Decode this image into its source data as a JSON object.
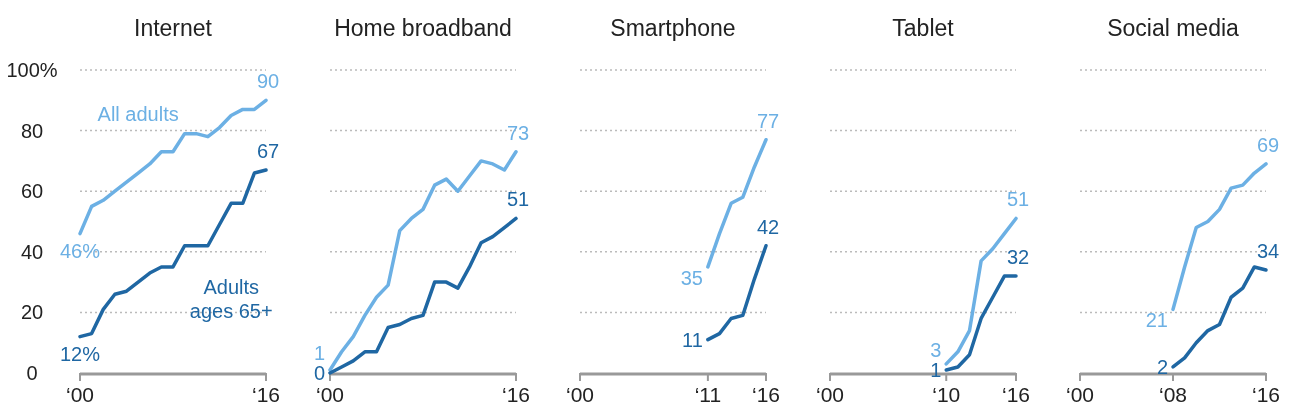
{
  "chart_data": [
    {
      "type": "line",
      "title": "Internet",
      "categories": [
        "‘00",
        null,
        null,
        null,
        null,
        null,
        null,
        null,
        null,
        null,
        null,
        null,
        null,
        null,
        null,
        null,
        "‘16"
      ],
      "ylim": [
        0,
        100
      ],
      "yticks": [
        0,
        20,
        40,
        60,
        80,
        {
          "value": 100,
          "label": "100%"
        }
      ],
      "grid": "y",
      "series": [
        {
          "name": "All adults",
          "color": "#6cb0e4",
          "values": [
            46,
            55,
            57,
            60,
            63,
            66,
            69,
            73,
            73,
            79,
            79,
            78,
            81,
            85,
            87,
            87,
            90
          ],
          "value_labels": [
            "46%",
            null,
            null,
            null,
            null,
            null,
            null,
            null,
            null,
            null,
            null,
            null,
            null,
            null,
            null,
            null,
            "90"
          ]
        },
        {
          "name": "Adults ages 65+",
          "color": "#1f67a3",
          "values": [
            12,
            13,
            21,
            26,
            27,
            30,
            33,
            35,
            35,
            42,
            42,
            42,
            49,
            56,
            56,
            66,
            67
          ],
          "value_labels": [
            "12%",
            null,
            null,
            null,
            null,
            null,
            null,
            null,
            null,
            null,
            null,
            null,
            null,
            null,
            null,
            null,
            "67"
          ]
        }
      ]
    },
    {
      "type": "line",
      "title": "Home broadband",
      "categories": [
        "‘00",
        null,
        null,
        null,
        null,
        null,
        null,
        null,
        null,
        null,
        null,
        null,
        null,
        null,
        null,
        null,
        "‘16"
      ],
      "ylim": [
        0,
        100
      ],
      "yticks": [
        0,
        20,
        40,
        60,
        80,
        100
      ],
      "grid": "y",
      "tick_labels": "x",
      "series": [
        {
          "color": "#6cb0e4",
          "values": [
            1,
            7,
            12,
            19,
            25,
            29,
            47,
            51,
            54,
            62,
            64,
            60,
            65,
            70,
            69,
            67,
            73
          ],
          "value_labels": [
            "1",
            null,
            null,
            null,
            null,
            null,
            null,
            null,
            null,
            null,
            null,
            null,
            null,
            null,
            null,
            null,
            "73"
          ]
        },
        {
          "color": "#1f67a3",
          "values": [
            0,
            2,
            4,
            7,
            7,
            15,
            16,
            18,
            19,
            30,
            30,
            28,
            35,
            43,
            45,
            48,
            51
          ],
          "value_labels": [
            "0",
            null,
            null,
            null,
            null,
            null,
            null,
            null,
            null,
            null,
            null,
            null,
            null,
            null,
            null,
            null,
            "51"
          ]
        }
      ]
    },
    {
      "type": "line",
      "title": "Smartphone",
      "categories": [
        "‘00",
        null,
        null,
        null,
        null,
        null,
        null,
        null,
        null,
        null,
        null,
        "‘11",
        null,
        null,
        null,
        null,
        "‘16"
      ],
      "ylim": [
        0,
        100
      ],
      "yticks": [
        0,
        20,
        40,
        60,
        80,
        100
      ],
      "grid": "y",
      "tick_labels": "x",
      "series": [
        {
          "color": "#6cb0e4",
          "values": [
            null,
            null,
            null,
            null,
            null,
            null,
            null,
            null,
            null,
            null,
            null,
            35,
            46,
            56,
            58,
            68,
            77
          ],
          "value_labels": [
            null,
            null,
            null,
            null,
            null,
            null,
            null,
            null,
            null,
            null,
            null,
            "35",
            null,
            null,
            null,
            null,
            "77"
          ]
        },
        {
          "color": "#1f67a3",
          "values": [
            null,
            null,
            null,
            null,
            null,
            null,
            null,
            null,
            null,
            null,
            null,
            11,
            13,
            18,
            19,
            31,
            42
          ],
          "value_labels": [
            null,
            null,
            null,
            null,
            null,
            null,
            null,
            null,
            null,
            null,
            null,
            "11",
            null,
            null,
            null,
            null,
            "42"
          ]
        }
      ]
    },
    {
      "type": "line",
      "title": "Tablet",
      "categories": [
        "‘00",
        null,
        null,
        null,
        null,
        null,
        null,
        null,
        null,
        null,
        "‘10",
        null,
        null,
        null,
        null,
        null,
        "‘16"
      ],
      "ylim": [
        0,
        100
      ],
      "yticks": [
        0,
        20,
        40,
        60,
        80,
        100
      ],
      "grid": "y",
      "tick_labels": "x",
      "series": [
        {
          "color": "#6cb0e4",
          "values": [
            null,
            null,
            null,
            null,
            null,
            null,
            null,
            null,
            null,
            null,
            3,
            7,
            14,
            37,
            41,
            46,
            51
          ],
          "value_labels": [
            null,
            null,
            null,
            null,
            null,
            null,
            null,
            null,
            null,
            null,
            "3",
            null,
            null,
            null,
            null,
            null,
            "51"
          ]
        },
        {
          "color": "#1f67a3",
          "values": [
            null,
            null,
            null,
            null,
            null,
            null,
            null,
            null,
            null,
            null,
            1,
            2,
            6,
            18,
            25,
            32,
            32
          ],
          "value_labels": [
            null,
            null,
            null,
            null,
            null,
            null,
            null,
            null,
            null,
            null,
            "1",
            null,
            null,
            null,
            null,
            null,
            "32"
          ]
        }
      ]
    },
    {
      "type": "line",
      "title": "Social media",
      "categories": [
        "‘00",
        null,
        null,
        null,
        null,
        null,
        null,
        null,
        "‘08",
        null,
        null,
        null,
        null,
        null,
        null,
        null,
        "‘16"
      ],
      "ylim": [
        0,
        100
      ],
      "yticks": [
        0,
        20,
        40,
        60,
        80,
        100
      ],
      "grid": "y",
      "tick_labels": "x",
      "series": [
        {
          "color": "#6cb0e4",
          "values": [
            null,
            null,
            null,
            null,
            null,
            null,
            null,
            null,
            21,
            35,
            48,
            50,
            54,
            61,
            62,
            66,
            69
          ],
          "value_labels": [
            null,
            null,
            null,
            null,
            null,
            null,
            null,
            null,
            "21",
            null,
            null,
            null,
            null,
            null,
            null,
            null,
            "69"
          ]
        },
        {
          "color": "#1f67a3",
          "values": [
            null,
            null,
            null,
            null,
            null,
            null,
            null,
            null,
            2,
            5,
            10,
            14,
            16,
            25,
            28,
            35,
            34
          ],
          "value_labels": [
            null,
            null,
            null,
            null,
            null,
            null,
            null,
            null,
            "2",
            null,
            null,
            null,
            null,
            null,
            null,
            null,
            "34"
          ]
        }
      ]
    }
  ]
}
